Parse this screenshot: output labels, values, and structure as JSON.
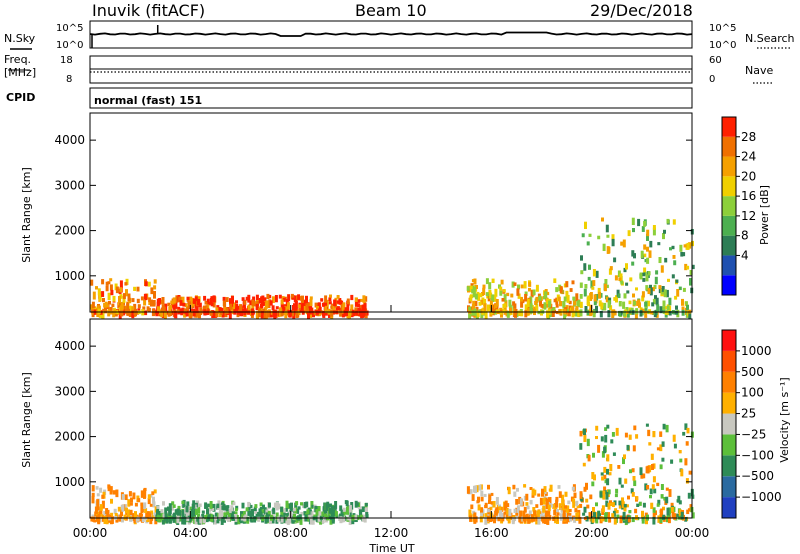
{
  "header": {
    "station": "Inuvik (fitACF)",
    "beam": "Beam 10",
    "date": "29/Dec/2018"
  },
  "noise_panel": {
    "left_label": "N.Sky",
    "right_label": "N.Search",
    "tick_top": "10^5",
    "tick_bottom": "10^0"
  },
  "freq_panel": {
    "left_label_1": "Freq.",
    "left_label_2": "[MHz]",
    "left_tick_top": "18",
    "left_tick_bottom": "8",
    "right_label": "Nave",
    "right_tick_top": "60",
    "right_tick_bottom": "0"
  },
  "cpid": {
    "label": "CPID",
    "value": "normal (fast) 151"
  },
  "x_axis": {
    "label": "Time UT",
    "ticks": [
      "00:00",
      "04:00",
      "08:00",
      "12:00",
      "16:00",
      "20:00",
      "00:00"
    ]
  },
  "power_panel": {
    "ylabel": "Slant Range [km]",
    "cbar_label": "Power [dB]",
    "cbar_ticks": [
      "28",
      "24",
      "20",
      "16",
      "12",
      "8",
      "4"
    ],
    "colors": [
      "#0000ff",
      "#1f50b0",
      "#2d7d55",
      "#4caf50",
      "#8ccf3a",
      "#f0d000",
      "#f5a000",
      "#f07000",
      "#ff2000"
    ]
  },
  "velocity_panel": {
    "ylabel": "Slant Range [km]",
    "cbar_label": "Velocity [m s⁻¹]",
    "cbar_ticks": [
      "1000",
      "500",
      "100",
      "25",
      "−25",
      "−100",
      "−500",
      "−1000"
    ],
    "colors": [
      "#2040c0",
      "#2a6aa0",
      "#2e8b57",
      "#5cbf3a",
      "#c8c8c0",
      "#ffb000",
      "#ff8000",
      "#ff5000",
      "#ff1010"
    ]
  },
  "chart_data": {
    "type": "heatmap",
    "title": "Inuvik (fitACF)  Beam 10  29/Dec/2018",
    "xlabel": "Time UT",
    "ylabel": "Slant Range [km]",
    "x_range_hours": [
      0,
      24
    ],
    "y_range_km": [
      200,
      4600
    ],
    "y_ticks": [
      1000,
      2000,
      3000,
      4000
    ],
    "power_colorbar_range_db": [
      0,
      32
    ],
    "velocity_colorbar_ticks": [
      1000,
      500,
      100,
      25,
      -25,
      -100,
      -500,
      -1000
    ],
    "freq_range_mhz": [
      8,
      18
    ],
    "nave_range": [
      0,
      60
    ],
    "cpid_name": "normal (fast)",
    "cpid": 151,
    "scatter_regions": [
      {
        "t0": 0.0,
        "t1": 2.6,
        "r0": 220,
        "r1": 950,
        "power": "orange/red",
        "velocity": "orange"
      },
      {
        "t0": 2.6,
        "t1": 11.0,
        "r0": 220,
        "r1": 600,
        "power": "red",
        "velocity": "green/grey"
      },
      {
        "t0": 15.0,
        "t1": 19.5,
        "r0": 220,
        "r1": 950,
        "power": "orange",
        "velocity": "orange"
      },
      {
        "t0": 19.5,
        "t1": 24.0,
        "r0": 220,
        "r1": 2300,
        "power": "orange/green",
        "velocity": "orange/green"
      }
    ]
  }
}
